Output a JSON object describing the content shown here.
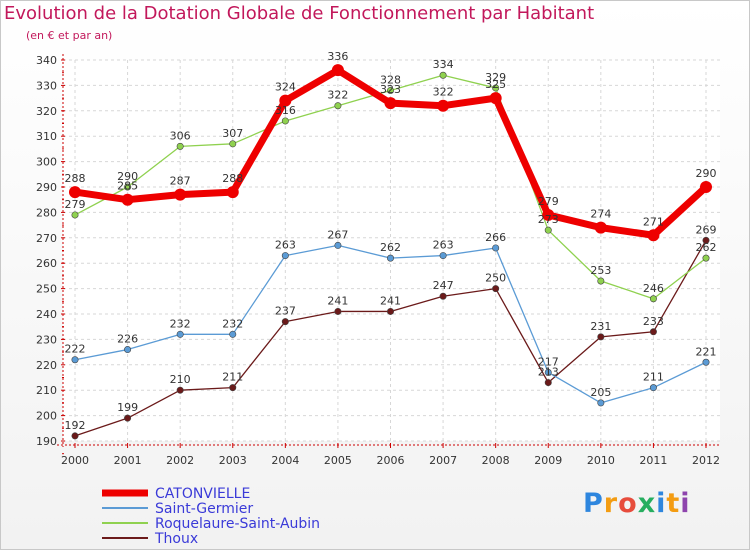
{
  "chart_data": {
    "type": "line",
    "title": "Evolution de la Dotation Globale de Fonctionnement par Habitant",
    "subtitle": "(en € et par an)",
    "xlabel": "",
    "ylabel": "",
    "ylim": [
      190,
      340
    ],
    "yticks": [
      190,
      200,
      210,
      220,
      230,
      240,
      250,
      260,
      270,
      280,
      290,
      300,
      310,
      320,
      330,
      340
    ],
    "categories": [
      "2000",
      "2001",
      "2002",
      "2003",
      "2004",
      "2005",
      "2006",
      "2007",
      "2008",
      "2009",
      "2010",
      "2011",
      "2012"
    ],
    "grid": true,
    "legend_position": "bottom-left",
    "series": [
      {
        "name": "CATONVIELLE",
        "color": "#ee0000",
        "emphasis": true,
        "values": [
          288,
          285,
          287,
          288,
          324,
          336,
          323,
          322,
          325,
          279,
          274,
          271,
          290
        ]
      },
      {
        "name": "Saint-Germier",
        "color": "#5b9bd5",
        "values": [
          222,
          226,
          232,
          232,
          263,
          267,
          262,
          263,
          266,
          217,
          205,
          211,
          221
        ]
      },
      {
        "name": "Roquelaure-Saint-Aubin",
        "color": "#8fd14f",
        "values": [
          279,
          290,
          306,
          307,
          316,
          322,
          328,
          334,
          329,
          273,
          253,
          246,
          262
        ]
      },
      {
        "name": "Thoux",
        "color": "#6b1a1a",
        "values": [
          192,
          199,
          210,
          211,
          237,
          241,
          241,
          247,
          250,
          213,
          231,
          233,
          269
        ]
      }
    ]
  },
  "logo": {
    "text": "Proxiti",
    "letter_colors": [
      "#2e86de",
      "#f39c12",
      "#e74c3c",
      "#27ae60",
      "#2e86de",
      "#f39c12",
      "#8e44ad"
    ]
  }
}
